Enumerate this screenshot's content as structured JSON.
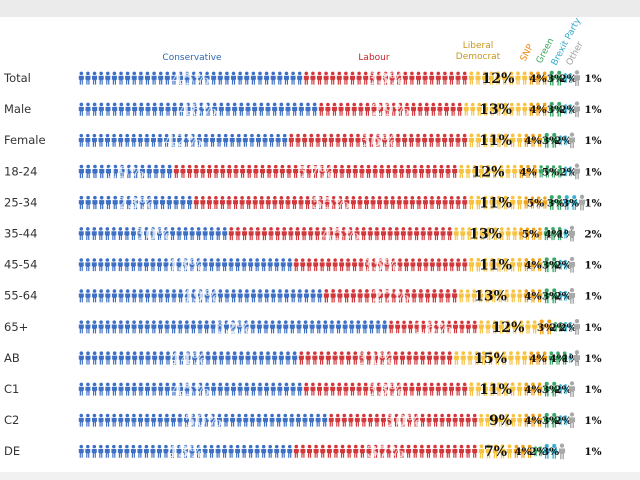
{
  "colors": {
    "conservative": "#3d6fc4",
    "labour": "#d2373b",
    "libdem": "#f6c342",
    "snp": "#f0a21b",
    "green": "#3aa868",
    "brexit": "#35b3cf",
    "other": "#a9a9a9",
    "header_conservative": "#2b67b5",
    "header_labour": "#c4242a",
    "header_libdem": "#c8961c",
    "header_snp": "#ef8a14",
    "header_green": "#39a860",
    "header_brexit": "#34aac8",
    "header_other": "#a0a0a0"
  },
  "headers": {
    "conservative": "Conservative",
    "labour": "Labour",
    "libdem_line1": "Liberal",
    "libdem_line2": "Democrat",
    "snp": "SNP",
    "green": "Green",
    "brexit": "Brexit Party",
    "other": "Other"
  },
  "chart_data": {
    "type": "bar",
    "stacked": true,
    "orientation": "horizontal",
    "unit": "%",
    "categories": [
      "Total",
      "Male",
      "Female",
      "18-24",
      "25-34",
      "35-44",
      "45-54",
      "55-64",
      "65+",
      "AB",
      "C1",
      "C2",
      "DE"
    ],
    "series": [
      {
        "name": "Conservative",
        "color": "#3d6fc4",
        "values": [
          45,
          48,
          42,
          19,
          23,
          30,
          43,
          49,
          62,
          44,
          45,
          50,
          43
        ]
      },
      {
        "name": "Labour",
        "color": "#d2373b",
        "values": [
          33,
          29,
          36,
          57,
          55,
          45,
          35,
          27,
          18,
          31,
          33,
          30,
          37
        ]
      },
      {
        "name": "Liberal Democrat",
        "color": "#f6c342",
        "values": [
          12,
          13,
          11,
          12,
          11,
          13,
          11,
          13,
          12,
          15,
          11,
          9,
          7
        ]
      },
      {
        "name": "SNP",
        "color": "#f0a21b",
        "values": [
          4,
          4,
          4,
          4,
          5,
          5,
          4,
          4,
          3,
          4,
          4,
          4,
          4
        ]
      },
      {
        "name": "Green",
        "color": "#3aa868",
        "values": [
          3,
          3,
          3,
          5,
          3,
          4,
          3,
          3,
          2,
          4,
          3,
          3,
          2
        ]
      },
      {
        "name": "Brexit Party",
        "color": "#35b3cf",
        "values": [
          2,
          2,
          2,
          2,
          3,
          1,
          2,
          2,
          2,
          1,
          2,
          2,
          3
        ]
      },
      {
        "name": "Other",
        "color": "#a9a9a9",
        "values": [
          1,
          1,
          1,
          1,
          1,
          2,
          1,
          1,
          1,
          1,
          1,
          1,
          1
        ]
      }
    ],
    "labels": [
      [
        "45%",
        "33%",
        "12%",
        "4%",
        "3%",
        "2%",
        "1%"
      ],
      [
        "48%",
        "29%",
        "13%",
        "4%",
        "3%",
        "2%",
        "1%"
      ],
      [
        "42%",
        "36%",
        "11%",
        "4%",
        "3%",
        "2%",
        "1%"
      ],
      [
        "19%",
        "57%",
        "12%",
        "4%",
        "5%",
        "2%",
        "1%"
      ],
      [
        "23%",
        "55%",
        "11%",
        "5%",
        "3%",
        "3%",
        "1%"
      ],
      [
        "30%",
        "45%",
        "13%",
        "5%",
        "4%",
        "1%",
        "2%"
      ],
      [
        "43%",
        "35%",
        "11%",
        "4%",
        "3%",
        "2%",
        "1%"
      ],
      [
        "49%",
        "27%",
        "13%",
        "4%",
        "3%",
        "2%",
        "1%"
      ],
      [
        "62%",
        "18%",
        "12%",
        "3%",
        "2%",
        "2%",
        "1%"
      ],
      [
        "44%",
        "31%",
        "15%",
        "4%",
        "4%",
        "1%",
        "1%"
      ],
      [
        "45%",
        "33%",
        "11%",
        "4%",
        "3%",
        "2%",
        "1%"
      ],
      [
        "50%",
        "30%",
        "9%",
        "4%",
        "3%",
        "2%",
        "1%"
      ],
      [
        "43%",
        "37%",
        "7%",
        "4%",
        "2%",
        "3%",
        "1%"
      ]
    ],
    "xlim": [
      0,
      100
    ],
    "legend": "top"
  }
}
